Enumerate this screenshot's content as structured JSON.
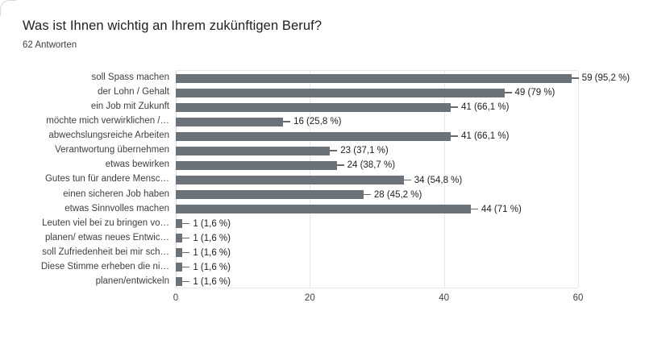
{
  "header": {
    "title": "Was ist Ihnen wichtig an Ihrem zukünftigen Beruf?",
    "subtitle": "62 Antworten"
  },
  "chart_data": {
    "type": "bar",
    "orientation": "horizontal",
    "title": "Was ist Ihnen wichtig an Ihrem zukünftigen Beruf?",
    "subtitle": "62 Antworten",
    "categories": [
      "soll Spass machen",
      "der Lohn / Gehalt",
      "ein Job mit Zukunft",
      "möchte mich verwirklichen /…",
      "abwechslungsreiche Arbeiten",
      "Verantwortung übernehmen",
      "etwas bewirken",
      "Gutes tun für andere Mensc…",
      "einen sicheren Job haben",
      "etwas Sinnvolles machen",
      "Leuten viel bei zu bringen vo…",
      "planen/ etwas neues Entwic…",
      "soll Zufriedenheit bei mir sch…",
      "Diese Stimme erheben die ni…",
      "planen/entwickeln"
    ],
    "values": [
      59,
      49,
      41,
      16,
      41,
      23,
      24,
      34,
      28,
      44,
      1,
      1,
      1,
      1,
      1
    ],
    "value_labels": [
      "59 (95,2 %)",
      "49 (79 %)",
      "41 (66,1 %)",
      "16 (25,8 %)",
      "41 (66,1 %)",
      "23 (37,1 %)",
      "24 (38,7 %)",
      "34 (54,8 %)",
      "28 (45,2 %)",
      "44 (71 %)",
      "1 (1,6 %)",
      "1 (1,6 %)",
      "1 (1,6 %)",
      "1 (1,6 %)",
      "1 (1,6 %)"
    ],
    "xlabel": "",
    "ylabel": "",
    "x_ticks": [
      0,
      20,
      40,
      60
    ],
    "xlim": [
      0,
      60
    ],
    "grid": true,
    "legend": "none",
    "bar_color": "#6c727a",
    "grid_color": "#e8e8e8",
    "zero_line_color": "#dadce0",
    "callout_color": "#66696e",
    "label_color": "#3c4043",
    "value_color": "#202124"
  }
}
